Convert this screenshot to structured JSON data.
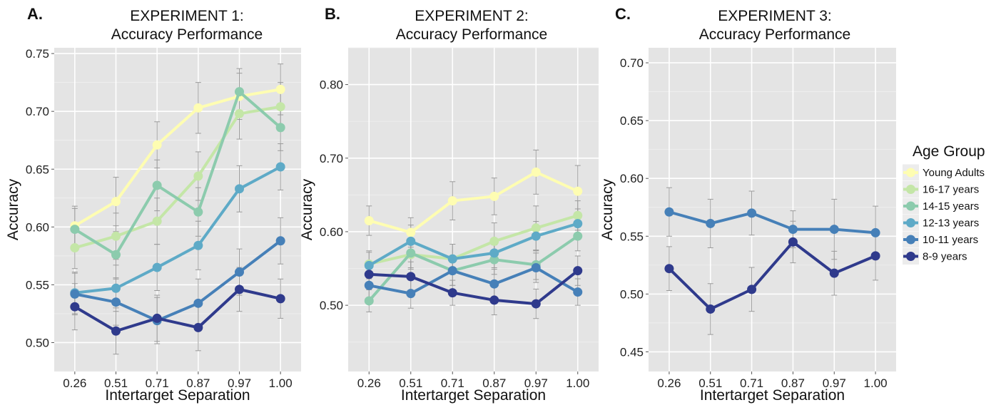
{
  "chart_data": [
    {
      "panel_label": "A.",
      "title_line1": "EXPERIMENT 1:",
      "title_line2": "Accuracy Performance",
      "type": "line",
      "xlabel": "Intertarget Separation",
      "ylabel": "Accuracy",
      "categories": [
        "0.26",
        "0.51",
        "0.71",
        "0.87",
        "0.97",
        "1.00"
      ],
      "ylim": [
        0.475,
        0.755
      ],
      "yticks": [
        0.5,
        0.55,
        0.6,
        0.65,
        0.7,
        0.75
      ],
      "ytick_labels": [
        "0.50",
        "0.55",
        "0.60",
        "0.65",
        "0.70",
        "0.75"
      ],
      "grid": true,
      "series": [
        {
          "name": "Young Adults",
          "values": [
            0.601,
            0.622,
            0.671,
            0.703,
            0.713,
            0.719
          ],
          "errors": [
            0.017,
            0.021,
            0.02,
            0.022,
            0.02,
            0.022
          ]
        },
        {
          "name": "16-17 years",
          "values": [
            0.582,
            0.592,
            0.605,
            0.644,
            0.698,
            0.704
          ],
          "errors": [
            0.018,
            0.02,
            0.02,
            0.021,
            0.022,
            0.021
          ]
        },
        {
          "name": "14-15 years",
          "values": [
            0.598,
            0.576,
            0.636,
            0.613,
            0.717,
            0.686
          ],
          "errors": [
            0.018,
            0.02,
            0.022,
            0.021,
            0.02,
            0.02
          ]
        },
        {
          "name": "12-13 years",
          "values": [
            0.543,
            0.547,
            0.565,
            0.584,
            0.633,
            0.652
          ],
          "errors": [
            0.018,
            0.02,
            0.02,
            0.021,
            0.02,
            0.02
          ]
        },
        {
          "name": "10-11 years",
          "values": [
            0.542,
            0.535,
            0.519,
            0.534,
            0.561,
            0.588
          ],
          "errors": [
            0.018,
            0.02,
            0.02,
            0.021,
            0.02,
            0.02
          ]
        },
        {
          "name": "8-9 years",
          "values": [
            0.531,
            0.51,
            0.521,
            0.513,
            0.546,
            0.538
          ],
          "errors": [
            0.02,
            0.02,
            0.02,
            0.02,
            0.019,
            0.017
          ]
        }
      ]
    },
    {
      "panel_label": "B.",
      "title_line1": "EXPERIMENT 2:",
      "title_line2": "Accuracy Performance",
      "type": "line",
      "xlabel": "Intertarget Separation",
      "ylabel": "Accuracy",
      "categories": [
        "0.26",
        "0.51",
        "0.71",
        "0.87",
        "0.97",
        "1.00"
      ],
      "ylim": [
        0.41,
        0.85
      ],
      "yticks": [
        0.5,
        0.6,
        0.7,
        0.8
      ],
      "ytick_labels": [
        "0.50",
        "0.60",
        "0.70",
        "0.80"
      ],
      "grid": true,
      "series": [
        {
          "name": "Young Adults",
          "values": [
            0.615,
            0.599,
            0.642,
            0.648,
            0.681,
            0.655
          ],
          "errors": [
            0.02,
            0.02,
            0.026,
            0.025,
            0.03,
            0.035
          ]
        },
        {
          "name": "16-17 years",
          "values": [
            0.556,
            0.569,
            0.563,
            0.587,
            0.605,
            0.622
          ],
          "errors": [
            0.018,
            0.02,
            0.02,
            0.025,
            0.03,
            0.02
          ]
        },
        {
          "name": "14-15 years",
          "values": [
            0.506,
            0.571,
            0.547,
            0.562,
            0.555,
            0.594
          ],
          "errors": [
            0.015,
            0.02,
            0.02,
            0.02,
            0.02,
            0.02
          ]
        },
        {
          "name": "12-13 years",
          "values": [
            0.554,
            0.587,
            0.563,
            0.571,
            0.594,
            0.611
          ],
          "errors": [
            0.018,
            0.022,
            0.02,
            0.02,
            0.02,
            0.02
          ]
        },
        {
          "name": "10-11 years",
          "values": [
            0.527,
            0.516,
            0.547,
            0.529,
            0.551,
            0.518
          ],
          "errors": [
            0.018,
            0.02,
            0.02,
            0.02,
            0.02,
            0.018
          ]
        },
        {
          "name": "8-9 years",
          "values": [
            0.542,
            0.539,
            0.517,
            0.507,
            0.502,
            0.547
          ],
          "errors": [
            0.018,
            0.02,
            0.017,
            0.02,
            0.02,
            0.02
          ]
        }
      ]
    },
    {
      "panel_label": "C.",
      "title_line1": "EXPERIMENT 3:",
      "title_line2": "Accuracy Performance",
      "type": "line",
      "xlabel": "Intertarget Separation",
      "ylabel": "Accuracy",
      "categories": [
        "0.26",
        "0.51",
        "0.71",
        "0.87",
        "0.97",
        "1.00"
      ],
      "ylim": [
        0.433,
        0.713
      ],
      "yticks": [
        0.45,
        0.5,
        0.55,
        0.6,
        0.65,
        0.7
      ],
      "ytick_labels": [
        "0.45",
        "0.50",
        "0.55",
        "0.60",
        "0.65",
        "0.70"
      ],
      "grid": true,
      "series": [
        {
          "name": "10-11 years",
          "values": [
            0.571,
            0.561,
            0.57,
            0.556,
            0.556,
            0.553
          ],
          "errors": [
            0.021,
            0.021,
            0.019,
            0.016,
            0.026,
            0.023
          ]
        },
        {
          "name": "8-9 years",
          "values": [
            0.522,
            0.487,
            0.504,
            0.545,
            0.518,
            0.533
          ],
          "errors": [
            0.019,
            0.022,
            0.019,
            0.018,
            0.019,
            0.021
          ]
        }
      ]
    }
  ],
  "legend": {
    "title": "Age Group",
    "placement": "right",
    "items": [
      {
        "label": "Young Adults",
        "color": "#fefdb2"
      },
      {
        "label": "16-17 years",
        "color": "#c4e6a7"
      },
      {
        "label": "14-15 years",
        "color": "#8ccbad"
      },
      {
        "label": "12-13 years",
        "color": "#5eaac7"
      },
      {
        "label": "10-11 years",
        "color": "#4680b8"
      },
      {
        "label": "8-9 years",
        "color": "#2f3a8c"
      }
    ]
  },
  "colors": {
    "Young Adults": "#fefdb2",
    "16-17 years": "#c4e6a7",
    "14-15 years": "#8ccbad",
    "12-13 years": "#5eaac7",
    "10-11 years": "#4680b8",
    "8-9 years": "#2f3a8c",
    "panel_background": "#e4e4e4",
    "gridline": "#ffffff",
    "errorbar": "#9a9a9a"
  }
}
